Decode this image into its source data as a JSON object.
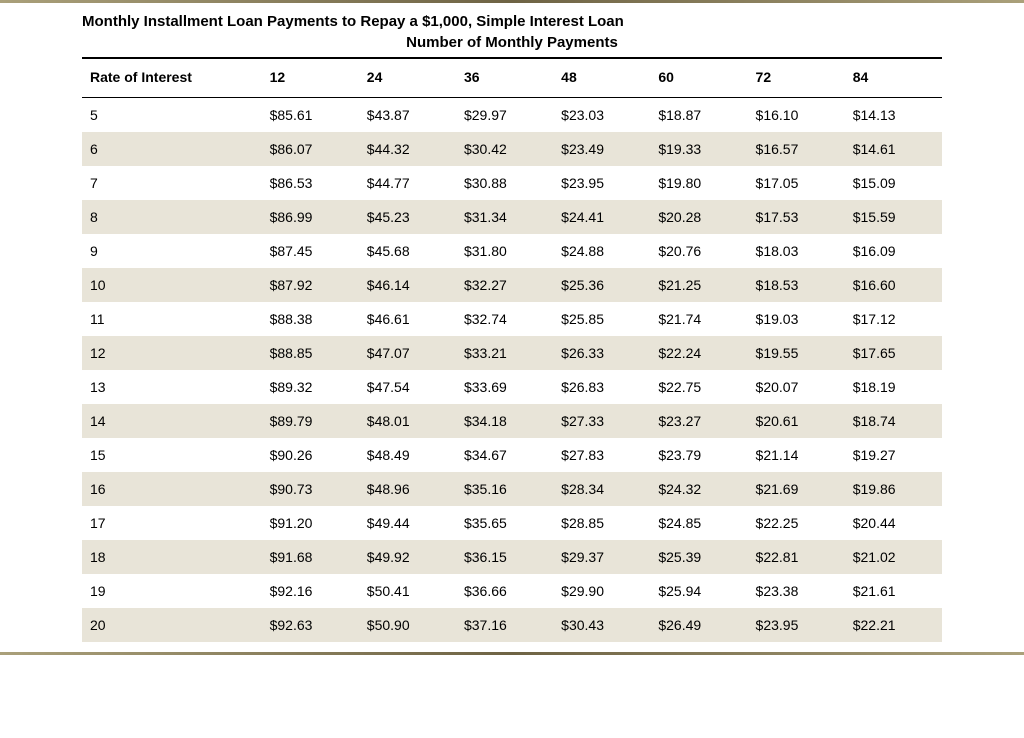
{
  "table": {
    "title_line1": "Monthly Installment Loan Payments to Repay a $1,000, Simple Interest Loan",
    "title_line2": "Number of Monthly Payments",
    "rate_header": "Rate of Interest",
    "columns": [
      "12",
      "24",
      "36",
      "48",
      "60",
      "72",
      "84"
    ],
    "rows": [
      {
        "rate": "5",
        "values": [
          "$85.61",
          "$43.87",
          "$29.97",
          "$23.03",
          "$18.87",
          "$16.10",
          "$14.13"
        ]
      },
      {
        "rate": "6",
        "values": [
          "$86.07",
          "$44.32",
          "$30.42",
          "$23.49",
          "$19.33",
          "$16.57",
          "$14.61"
        ]
      },
      {
        "rate": "7",
        "values": [
          "$86.53",
          "$44.77",
          "$30.88",
          "$23.95",
          "$19.80",
          "$17.05",
          "$15.09"
        ]
      },
      {
        "rate": "8",
        "values": [
          "$86.99",
          "$45.23",
          "$31.34",
          "$24.41",
          "$20.28",
          "$17.53",
          "$15.59"
        ]
      },
      {
        "rate": "9",
        "values": [
          "$87.45",
          "$45.68",
          "$31.80",
          "$24.88",
          "$20.76",
          "$18.03",
          "$16.09"
        ]
      },
      {
        "rate": "10",
        "values": [
          "$87.92",
          "$46.14",
          "$32.27",
          "$25.36",
          "$21.25",
          "$18.53",
          "$16.60"
        ]
      },
      {
        "rate": "11",
        "values": [
          "$88.38",
          "$46.61",
          "$32.74",
          "$25.85",
          "$21.74",
          "$19.03",
          "$17.12"
        ]
      },
      {
        "rate": "12",
        "values": [
          "$88.85",
          "$47.07",
          "$33.21",
          "$26.33",
          "$22.24",
          "$19.55",
          "$17.65"
        ]
      },
      {
        "rate": "13",
        "values": [
          "$89.32",
          "$47.54",
          "$33.69",
          "$26.83",
          "$22.75",
          "$20.07",
          "$18.19"
        ]
      },
      {
        "rate": "14",
        "values": [
          "$89.79",
          "$48.01",
          "$34.18",
          "$27.33",
          "$23.27",
          "$20.61",
          "$18.74"
        ]
      },
      {
        "rate": "15",
        "values": [
          "$90.26",
          "$48.49",
          "$34.67",
          "$27.83",
          "$23.79",
          "$21.14",
          "$19.27"
        ]
      },
      {
        "rate": "16",
        "values": [
          "$90.73",
          "$48.96",
          "$35.16",
          "$28.34",
          "$24.32",
          "$21.69",
          "$19.86"
        ]
      },
      {
        "rate": "17",
        "values": [
          "$91.20",
          "$49.44",
          "$35.65",
          "$28.85",
          "$24.85",
          "$22.25",
          "$20.44"
        ]
      },
      {
        "rate": "18",
        "values": [
          "$91.68",
          "$49.92",
          "$36.15",
          "$29.37",
          "$25.39",
          "$22.81",
          "$21.02"
        ]
      },
      {
        "rate": "19",
        "values": [
          "$92.16",
          "$50.41",
          "$36.66",
          "$29.90",
          "$25.94",
          "$23.38",
          "$21.61"
        ]
      },
      {
        "rate": "20",
        "values": [
          "$92.63",
          "$50.90",
          "$37.16",
          "$30.43",
          "$26.49",
          "$23.95",
          "$22.21"
        ]
      }
    ]
  },
  "style": {
    "row_alt_bg": "#e8e4d8",
    "row_bg": "#ffffff",
    "text_color": "#000000",
    "header_border_color": "#000000",
    "top_rule_gradient": [
      "#aaa07a",
      "#6e6344",
      "#aaa07a"
    ],
    "font_family": "Verdana, Geneva, sans-serif",
    "title_fontsize_pt": 11,
    "body_fontsize_pt": 10
  }
}
